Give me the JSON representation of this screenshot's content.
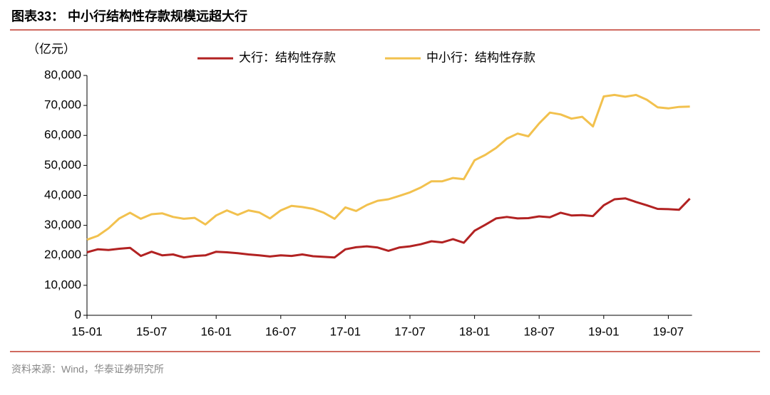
{
  "chart_data": {
    "type": "line",
    "title": "图表33：  中小行结构性存款规模远超大行",
    "y_label": "（亿元）",
    "source": "资料来源：Wind，华泰证券研究所",
    "categories": [
      "15-01",
      null,
      null,
      null,
      null,
      null,
      "15-07",
      null,
      null,
      null,
      null,
      null,
      "16-01",
      null,
      null,
      null,
      null,
      null,
      "16-07",
      null,
      null,
      null,
      null,
      null,
      "17-01",
      null,
      null,
      null,
      null,
      null,
      "17-07",
      null,
      null,
      null,
      null,
      null,
      "18-01",
      null,
      null,
      null,
      null,
      null,
      "18-07",
      null,
      null,
      null,
      null,
      null,
      "19-01",
      null,
      null,
      null,
      null,
      null,
      "19-07",
      null,
      null
    ],
    "series": [
      {
        "name": "大行：结构性存款",
        "color": "#b22222",
        "values": [
          21000,
          22000,
          21800,
          22200,
          22500,
          19800,
          21200,
          20000,
          20300,
          19300,
          19800,
          20000,
          21200,
          21000,
          20700,
          20300,
          20000,
          19600,
          20000,
          19800,
          20300,
          19700,
          19500,
          19300,
          22000,
          22700,
          23000,
          22600,
          21500,
          22600,
          23000,
          23700,
          24700,
          24300,
          25400,
          24200,
          28200,
          30200,
          32300,
          32800,
          32300,
          32400,
          33000,
          32700,
          34200,
          33300,
          33400,
          33100,
          36700,
          38700,
          39000,
          37800,
          36700,
          35500,
          35400,
          35200,
          38900
        ]
      },
      {
        "name": "中小行：结构性存款",
        "color": "#f2c14e",
        "values": [
          25200,
          26500,
          29000,
          32300,
          34200,
          32200,
          33700,
          34000,
          32800,
          32200,
          32500,
          30300,
          33300,
          35000,
          33500,
          35000,
          34300,
          32300,
          35000,
          36500,
          36100,
          35500,
          34200,
          32200,
          36000,
          34800,
          36800,
          38200,
          38700,
          39800,
          41000,
          42600,
          44700,
          44700,
          45800,
          45400,
          51700,
          53500,
          55800,
          58900,
          60600,
          59700,
          64000,
          67600,
          67000,
          65600,
          66200,
          63000,
          73000,
          73500,
          72900,
          73500,
          71900,
          69400,
          69000,
          69500,
          69600
        ]
      }
    ],
    "ylim": [
      0,
      80000
    ],
    "yticks": [
      0,
      {
        "value": 10000,
        "label": "10,000"
      },
      {
        "value": 20000,
        "label": "20,000"
      },
      {
        "value": 30000,
        "label": "30,000"
      },
      {
        "value": 40000,
        "label": "40,000"
      },
      {
        "value": 50000,
        "label": "50,000"
      },
      {
        "value": 60000,
        "label": "60,000"
      },
      {
        "value": 70000,
        "label": "70,000"
      },
      {
        "value": 80000,
        "label": "80,000"
      }
    ],
    "grid": false
  }
}
